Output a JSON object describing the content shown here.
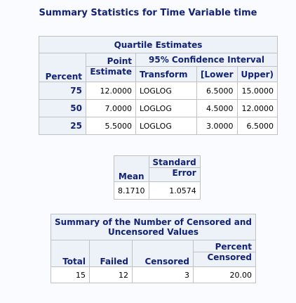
{
  "title": "Summary Statistics for Time Variable time",
  "quartile": {
    "caption": "Quartile Estimates",
    "ci_header": "95% Confidence Interval",
    "col_percent": "Percent",
    "col_point_1": "Point",
    "col_point_2": "Estimate",
    "col_transform": "Transform",
    "col_lower": "[Lower",
    "col_upper": "Upper)",
    "rows": [
      {
        "percent": "75",
        "estimate": "12.0000",
        "transform": "LOGLOG",
        "lower": "6.5000",
        "upper": "15.0000"
      },
      {
        "percent": "50",
        "estimate": "7.0000",
        "transform": "LOGLOG",
        "lower": "4.5000",
        "upper": "12.0000"
      },
      {
        "percent": "25",
        "estimate": "5.5000",
        "transform": "LOGLOG",
        "lower": "3.0000",
        "upper": "6.5000"
      }
    ]
  },
  "mean": {
    "col_mean": "Mean",
    "col_se_1": "Standard",
    "col_se_2": "Error",
    "value_mean": "8.1710",
    "value_se": "1.0574"
  },
  "censored": {
    "caption_1": "Summary of the Number of Censored and",
    "caption_2": "Uncensored Values",
    "col_total": "Total",
    "col_failed": "Failed",
    "col_censored": "Censored",
    "col_pct_1": "Percent",
    "col_pct_2": "Censored",
    "value_total": "15",
    "value_failed": "12",
    "value_censored": "3",
    "value_pct": "20.00"
  }
}
